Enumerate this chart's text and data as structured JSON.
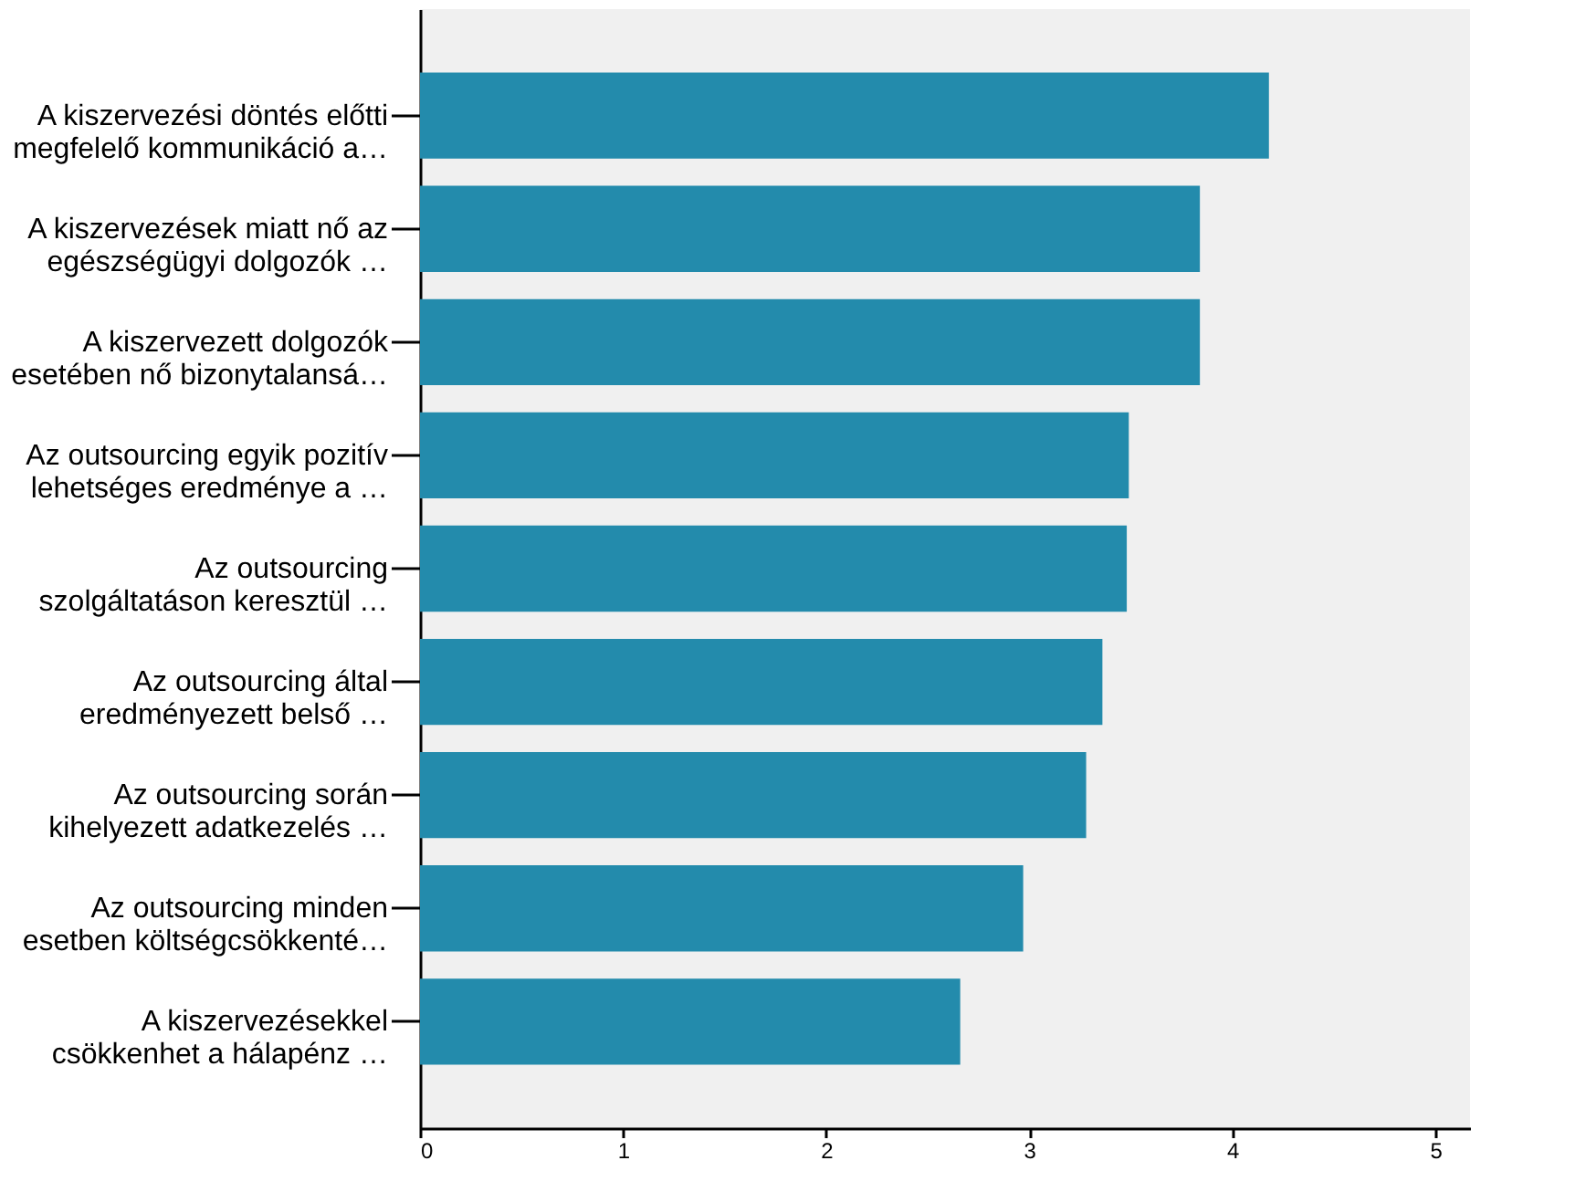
{
  "chart_data": {
    "type": "bar",
    "orientation": "horizontal",
    "categories": [
      "A kiszervezési döntés előtti\nmegfelelő kommunikáció a…",
      "A kiszervezések miatt nő az\negészségügyi dolgozók …",
      "A kiszervezett dolgozók\nesetében nő bizonytalansá…",
      "Az outsourcing egyik pozitív\nlehetséges eredménye a …",
      "Az outsourcing\nszolgáltatáson keresztül …",
      "Az outsourcing által\neredményezett belső …",
      "Az outsourcing során\nkihelyezett adatkezelés …",
      "Az outsourcing minden\nesetben költségcsökkenté…",
      "A kiszervezésekkel\ncsökkenhet a hálapénz …"
    ],
    "values": [
      4.18,
      3.84,
      3.84,
      3.49,
      3.48,
      3.36,
      3.28,
      2.97,
      2.66
    ],
    "color": "#238bac",
    "xlim": [
      0,
      5.17
    ],
    "xticks": [
      0,
      1,
      2,
      3,
      4,
      5
    ],
    "grid": false
  }
}
